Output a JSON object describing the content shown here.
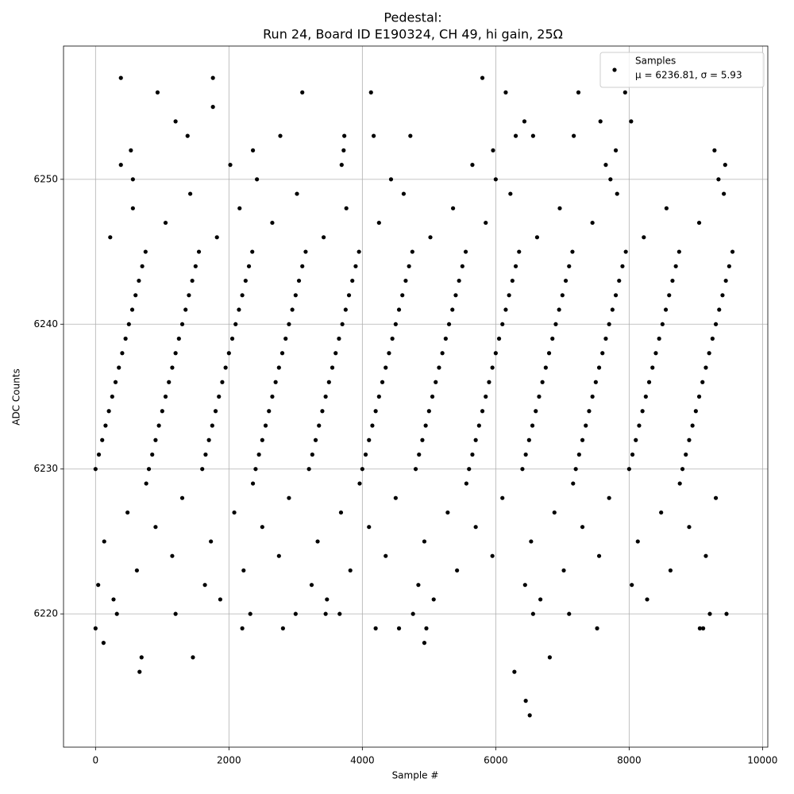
{
  "chart_data": {
    "type": "scatter",
    "title": "Pedestal:",
    "subtitle": "Run 24, Board ID E190324, CH 49, hi gain, 25Ω",
    "x_label": "Sample #",
    "y_label": "ADC Counts",
    "xlim": [
      -480,
      10079
    ],
    "ylim": [
      6210.8,
      6259.2
    ],
    "xticks": [
      0,
      2000,
      4000,
      6000,
      8000,
      10000
    ],
    "yticks": [
      6220,
      6230,
      6240,
      6250
    ],
    "grid": true,
    "legend_position": "upper right",
    "legend_stats": "μ = 6236.81, σ = 5.93",
    "series": [
      {
        "name": "Samples",
        "color": "#000000",
        "x": [
          380,
          1760,
          5800,
          930,
          1760,
          3100,
          4130,
          6150,
          7240,
          7940,
          1200,
          6430,
          7570,
          8030,
          1380,
          2770,
          3730,
          4170,
          4720,
          6300,
          6560,
          7170,
          0,
          120,
          660,
          690,
          1460,
          2200,
          2810,
          4200,
          4550,
          4930,
          4960,
          6280,
          6450,
          6510,
          6810,
          7520,
          9060,
          9110,
          320,
          1200,
          2320,
          3000,
          3450,
          3660,
          4760,
          6560,
          7100,
          9210,
          9460,
          530,
          2360,
          3720,
          5960,
          7800,
          9280,
          380,
          2020,
          3690,
          5650,
          7650,
          9440,
          560,
          2420,
          4430,
          6000,
          7720,
          9340,
          1420,
          3020,
          4620,
          6220,
          7820,
          9420,
          560,
          2160,
          3760,
          5360,
          6960,
          8560,
          1050,
          2650,
          4250,
          5850,
          7450,
          9050,
          220,
          1820,
          3420,
          5020,
          6620,
          8220,
          0,
          800,
          1600,
          2400,
          3200,
          4000,
          4800,
          5600,
          6400,
          7200,
          8000,
          8800,
          50,
          850,
          1650,
          2450,
          3250,
          4050,
          4850,
          5650,
          6450,
          7250,
          8050,
          8850,
          100,
          900,
          1700,
          2500,
          3300,
          4100,
          4900,
          5700,
          6500,
          7300,
          8100,
          8900,
          150,
          950,
          1750,
          2550,
          3350,
          4150,
          4950,
          5750,
          6550,
          7350,
          8150,
          8950,
          200,
          1000,
          1800,
          2600,
          3400,
          4200,
          5000,
          5800,
          6600,
          7400,
          8200,
          9000,
          250,
          1050,
          1850,
          2650,
          3450,
          4250,
          5050,
          5850,
          6650,
          7450,
          8250,
          9050,
          300,
          1100,
          1900,
          2700,
          3500,
          4300,
          5100,
          5900,
          6700,
          7500,
          8300,
          9100,
          350,
          1150,
          1950,
          2750,
          3550,
          4350,
          5150,
          5950,
          6750,
          7550,
          8350,
          9150,
          400,
          1200,
          2000,
          2800,
          3600,
          4400,
          5200,
          6000,
          6800,
          7600,
          8400,
          9200,
          450,
          1250,
          2050,
          2850,
          3650,
          4450,
          5250,
          6050,
          6850,
          7650,
          8450,
          9250,
          500,
          1300,
          2100,
          2900,
          3700,
          4500,
          5300,
          6100,
          6900,
          7700,
          8500,
          9300,
          550,
          1350,
          2150,
          2950,
          3750,
          4550,
          5350,
          6150,
          6950,
          7750,
          8550,
          9350,
          600,
          1400,
          2200,
          3000,
          3800,
          4600,
          5400,
          6200,
          7000,
          7800,
          8600,
          9400,
          650,
          1450,
          2250,
          3050,
          3850,
          4650,
          5450,
          6250,
          7050,
          7850,
          8650,
          9450,
          700,
          1500,
          2300,
          3100,
          3900,
          4700,
          5500,
          6300,
          7100,
          7900,
          8700,
          9500,
          750,
          1550,
          2350,
          3150,
          3950,
          4750,
          5550,
          6350,
          7150,
          7950,
          8750,
          9550,
          760,
          2360,
          3960,
          5560,
          7160,
          8760,
          1300,
          2900,
          4500,
          6100,
          7700,
          9300,
          480,
          2080,
          3680,
          5280,
          6880,
          8480,
          900,
          2500,
          4100,
          5700,
          7300,
          8900,
          130,
          1730,
          3330,
          4930,
          6530,
          8130,
          1150,
          2750,
          4350,
          5950,
          7550,
          9150,
          620,
          2220,
          3820,
          5420,
          7020,
          8620,
          40,
          1640,
          3240,
          4840,
          6440,
          8040,
          270,
          1870,
          3470,
          5070,
          6670,
          8270
        ],
        "y": [
          6257,
          6257,
          6257,
          6256,
          6255,
          6256,
          6256,
          6256,
          6256,
          6256,
          6254,
          6254,
          6254,
          6254,
          6253,
          6253,
          6253,
          6253,
          6253,
          6253,
          6253,
          6253,
          6219,
          6218,
          6216,
          6217,
          6217,
          6219,
          6219,
          6219,
          6219,
          6218,
          6219,
          6216,
          6214,
          6213,
          6217,
          6219,
          6219,
          6219,
          6220,
          6220,
          6220,
          6220,
          6220,
          6220,
          6220,
          6220,
          6220,
          6220,
          6220,
          6252,
          6252,
          6252,
          6252,
          6252,
          6252,
          6251,
          6251,
          6251,
          6251,
          6251,
          6251,
          6250,
          6250,
          6250,
          6250,
          6250,
          6250,
          6249,
          6249,
          6249,
          6249,
          6249,
          6249,
          6248,
          6248,
          6248,
          6248,
          6248,
          6248,
          6247,
          6247,
          6247,
          6247,
          6247,
          6247,
          6246,
          6246,
          6246,
          6246,
          6246,
          6246,
          6230,
          6230,
          6230,
          6230,
          6230,
          6230,
          6230,
          6230,
          6230,
          6230,
          6230,
          6230,
          6231,
          6231,
          6231,
          6231,
          6231,
          6231,
          6231,
          6231,
          6231,
          6231,
          6231,
          6231,
          6232,
          6232,
          6232,
          6232,
          6232,
          6232,
          6232,
          6232,
          6232,
          6232,
          6232,
          6232,
          6233,
          6233,
          6233,
          6233,
          6233,
          6233,
          6233,
          6233,
          6233,
          6233,
          6233,
          6233,
          6234,
          6234,
          6234,
          6234,
          6234,
          6234,
          6234,
          6234,
          6234,
          6234,
          6234,
          6234,
          6235,
          6235,
          6235,
          6235,
          6235,
          6235,
          6235,
          6235,
          6235,
          6235,
          6235,
          6235,
          6236,
          6236,
          6236,
          6236,
          6236,
          6236,
          6236,
          6236,
          6236,
          6236,
          6236,
          6236,
          6237,
          6237,
          6237,
          6237,
          6237,
          6237,
          6237,
          6237,
          6237,
          6237,
          6237,
          6237,
          6238,
          6238,
          6238,
          6238,
          6238,
          6238,
          6238,
          6238,
          6238,
          6238,
          6238,
          6238,
          6239,
          6239,
          6239,
          6239,
          6239,
          6239,
          6239,
          6239,
          6239,
          6239,
          6239,
          6239,
          6240,
          6240,
          6240,
          6240,
          6240,
          6240,
          6240,
          6240,
          6240,
          6240,
          6240,
          6240,
          6241,
          6241,
          6241,
          6241,
          6241,
          6241,
          6241,
          6241,
          6241,
          6241,
          6241,
          6241,
          6242,
          6242,
          6242,
          6242,
          6242,
          6242,
          6242,
          6242,
          6242,
          6242,
          6242,
          6242,
          6243,
          6243,
          6243,
          6243,
          6243,
          6243,
          6243,
          6243,
          6243,
          6243,
          6243,
          6243,
          6244,
          6244,
          6244,
          6244,
          6244,
          6244,
          6244,
          6244,
          6244,
          6244,
          6244,
          6244,
          6245,
          6245,
          6245,
          6245,
          6245,
          6245,
          6245,
          6245,
          6245,
          6245,
          6245,
          6245,
          6229,
          6229,
          6229,
          6229,
          6229,
          6229,
          6228,
          6228,
          6228,
          6228,
          6228,
          6228,
          6227,
          6227,
          6227,
          6227,
          6227,
          6227,
          6226,
          6226,
          6226,
          6226,
          6226,
          6226,
          6225,
          6225,
          6225,
          6225,
          6225,
          6225,
          6224,
          6224,
          6224,
          6224,
          6224,
          6224,
          6223,
          6223,
          6223,
          6223,
          6223,
          6223,
          6222,
          6222,
          6222,
          6222,
          6222,
          6222,
          6221,
          6221,
          6221,
          6221,
          6221,
          6221
        ]
      }
    ]
  }
}
